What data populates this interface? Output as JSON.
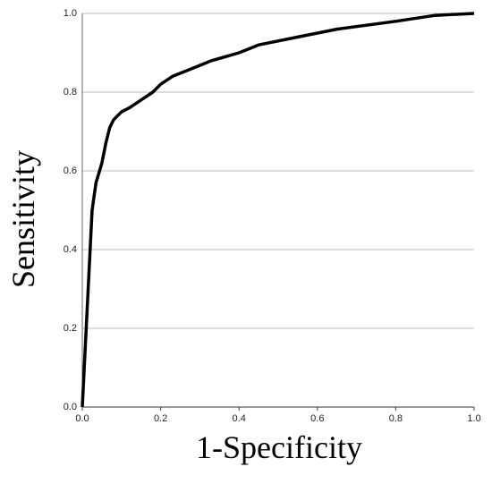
{
  "chart_data": {
    "type": "line",
    "xlabel": "1-Specificity",
    "ylabel": "Sensitivity",
    "x": [
      0,
      0.005,
      0.01,
      0.015,
      0.02,
      0.025,
      0.035,
      0.05,
      0.06,
      0.07,
      0.08,
      0.1,
      0.12,
      0.15,
      0.18,
      0.2,
      0.23,
      0.28,
      0.33,
      0.4,
      0.45,
      0.55,
      0.65,
      0.8,
      0.9,
      1.0
    ],
    "values": [
      0,
      0.1,
      0.2,
      0.3,
      0.4,
      0.5,
      0.57,
      0.62,
      0.67,
      0.71,
      0.73,
      0.75,
      0.76,
      0.78,
      0.8,
      0.82,
      0.84,
      0.86,
      0.88,
      0.9,
      0.92,
      0.94,
      0.96,
      0.98,
      0.995,
      1.0
    ],
    "color": "#000000",
    "xlim": [
      0,
      1
    ],
    "ylim": [
      0,
      1
    ],
    "xticks": [
      {
        "value": 0,
        "label": "0.0"
      },
      0.2,
      0.4,
      0.6,
      0.8,
      {
        "value": 1,
        "label": "1.0"
      }
    ],
    "yticks": [
      {
        "value": 0,
        "label": "0.0"
      },
      0.2,
      0.4,
      0.6,
      0.8,
      {
        "value": 1,
        "label": "1.0"
      }
    ],
    "grid": true
  }
}
